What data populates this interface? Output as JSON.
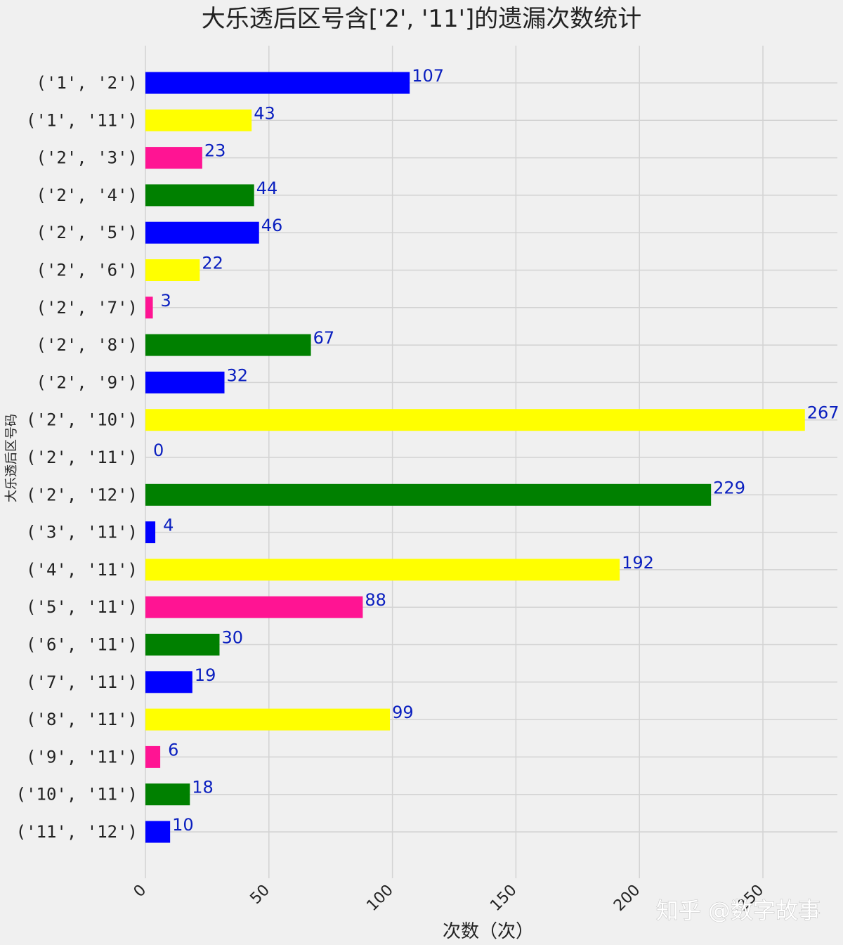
{
  "chart_data": {
    "type": "bar",
    "orientation": "horizontal",
    "title": "大乐透后区号含['2', '11']的遗漏次数统计",
    "xlabel": "次数（次）",
    "ylabel": "大乐透后区号码",
    "xlim": [
      0,
      275
    ],
    "xticks": [
      "0",
      "50",
      "100",
      "150",
      "200",
      "250"
    ],
    "xtick_values": [
      0,
      50,
      100,
      150,
      200,
      250
    ],
    "grid": true,
    "categories": [
      "('1', '2')",
      "('1', '11')",
      "('2', '3')",
      "('2', '4')",
      "('2', '5')",
      "('2', '6')",
      "('2', '7')",
      "('2', '8')",
      "('2', '9')",
      "('2', '10')",
      "('2', '11')",
      "('2', '12')",
      "('3', '11')",
      "('4', '11')",
      "('5', '11')",
      "('6', '11')",
      "('7', '11')",
      "('8', '11')",
      "('9', '11')",
      "('10', '11')",
      "('11', '12')"
    ],
    "values": [
      107,
      43,
      23,
      44,
      46,
      22,
      3,
      67,
      32,
      267,
      0,
      229,
      4,
      192,
      88,
      30,
      19,
      99,
      6,
      18,
      10
    ],
    "value_labels": [
      "107",
      "43",
      "23",
      "44",
      "46",
      "22",
      "3",
      "67",
      "32",
      "267",
      "0",
      "229",
      "4",
      "192",
      "88",
      "30",
      "19",
      "99",
      "6",
      "18",
      "10"
    ],
    "bar_colors": [
      "#0000ff",
      "#ffff00",
      "#ff1493",
      "#008000"
    ],
    "label_color": "#0a1fbf"
  },
  "watermark": "知乎 @数字故事"
}
